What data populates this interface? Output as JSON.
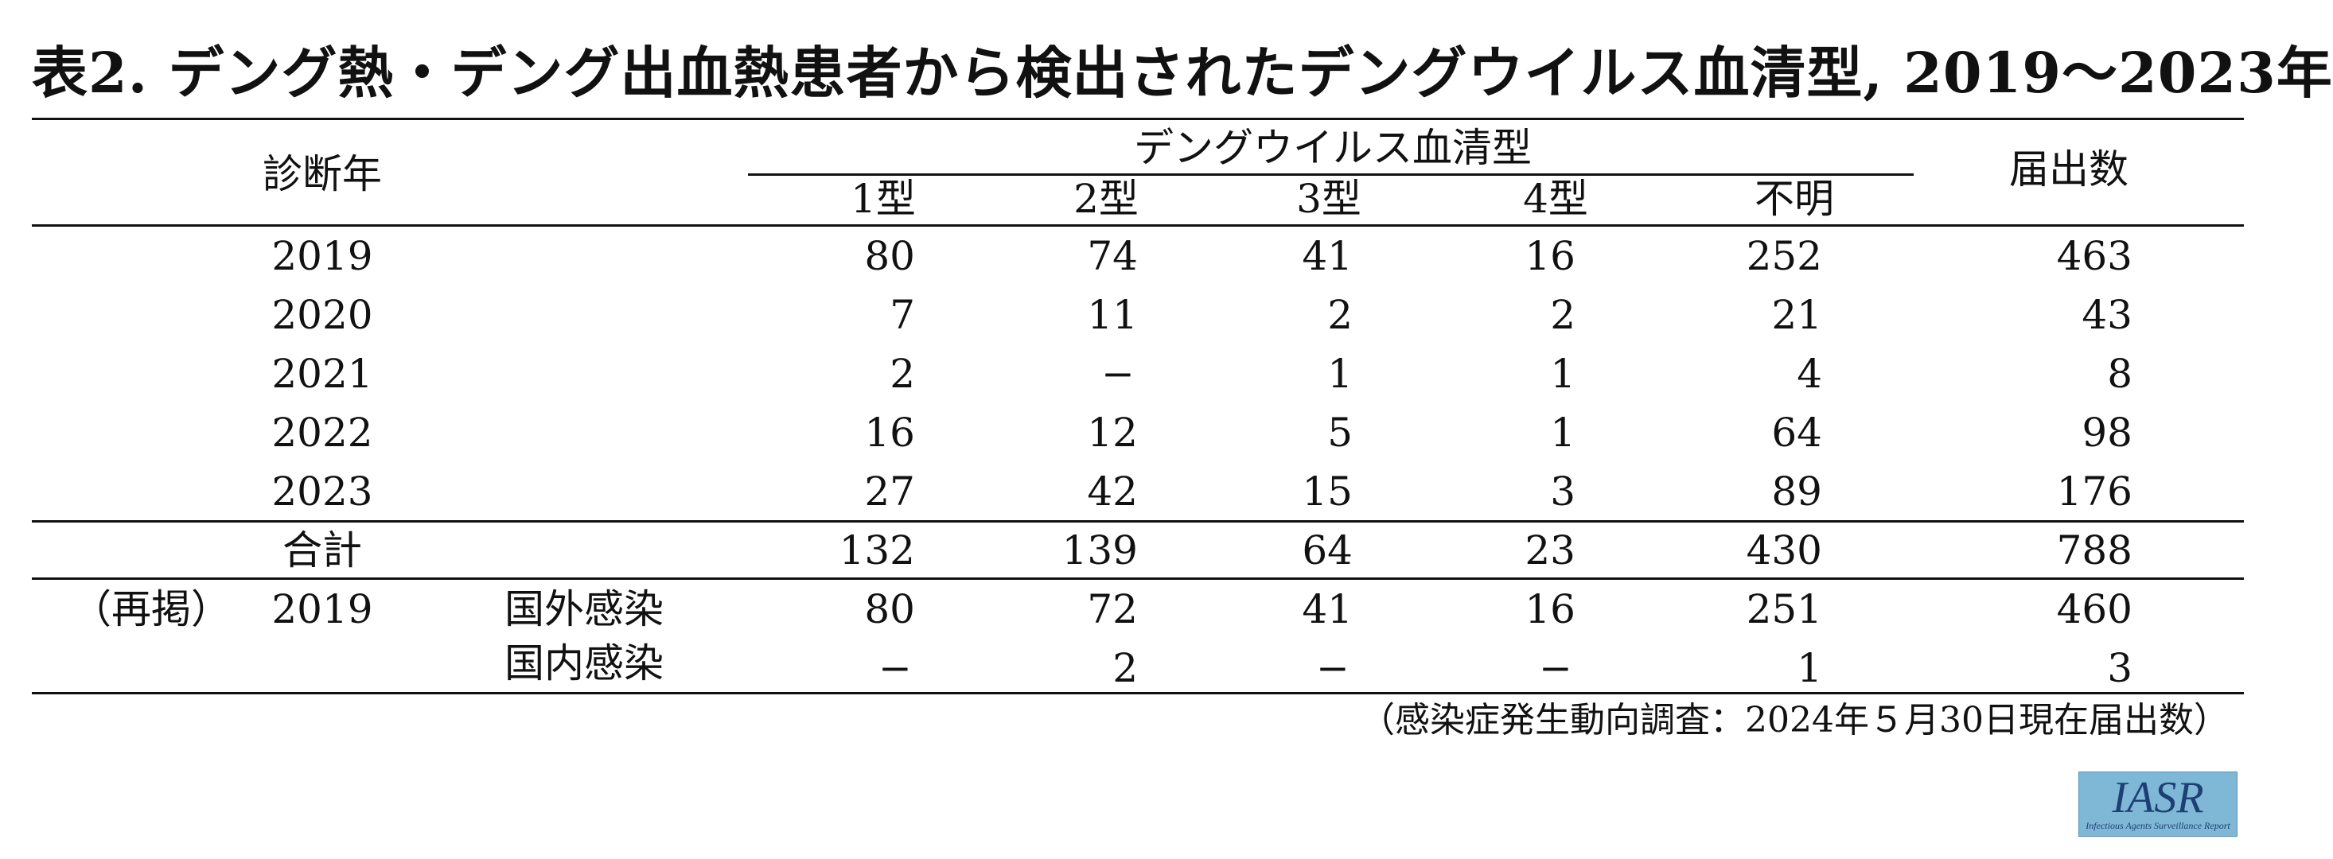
{
  "title": "表2. デング熱・デング出血熱患者から検出されたデングウイルス血清型, 2019〜2023年",
  "header": {
    "diagnosis_year": "診断年",
    "serotype_group": "デングウイルス血清型",
    "cols": [
      "1型",
      "2型",
      "3型",
      "4型",
      "不明"
    ],
    "reported": "届出数"
  },
  "rows": [
    {
      "year": "2019",
      "values": [
        "80",
        "74",
        "41",
        "16",
        "252",
        "463"
      ]
    },
    {
      "year": "2020",
      "values": [
        "7",
        "11",
        "2",
        "2",
        "21",
        "43"
      ]
    },
    {
      "year": "2021",
      "values": [
        "2",
        "−",
        "1",
        "1",
        "4",
        "8"
      ]
    },
    {
      "year": "2022",
      "values": [
        "16",
        "12",
        "5",
        "1",
        "64",
        "98"
      ]
    },
    {
      "year": "2023",
      "values": [
        "27",
        "42",
        "15",
        "3",
        "89",
        "176"
      ]
    }
  ],
  "total": {
    "label": "合計",
    "values": [
      "132",
      "139",
      "64",
      "23",
      "430",
      "788"
    ]
  },
  "reprint": {
    "label": "（再掲）",
    "year": "2019",
    "rows": [
      {
        "type": "国外感染",
        "values": [
          "80",
          "72",
          "41",
          "16",
          "251",
          "460"
        ]
      },
      {
        "type": "国内感染",
        "values": [
          "−",
          "2",
          "−",
          "−",
          "1",
          "3"
        ]
      }
    ]
  },
  "footnote": "（感染症発生動向調査：2024年５月30日現在届出数）",
  "logo": {
    "main": "IASR",
    "sub": "Infectious Agents Surveillance Report"
  }
}
